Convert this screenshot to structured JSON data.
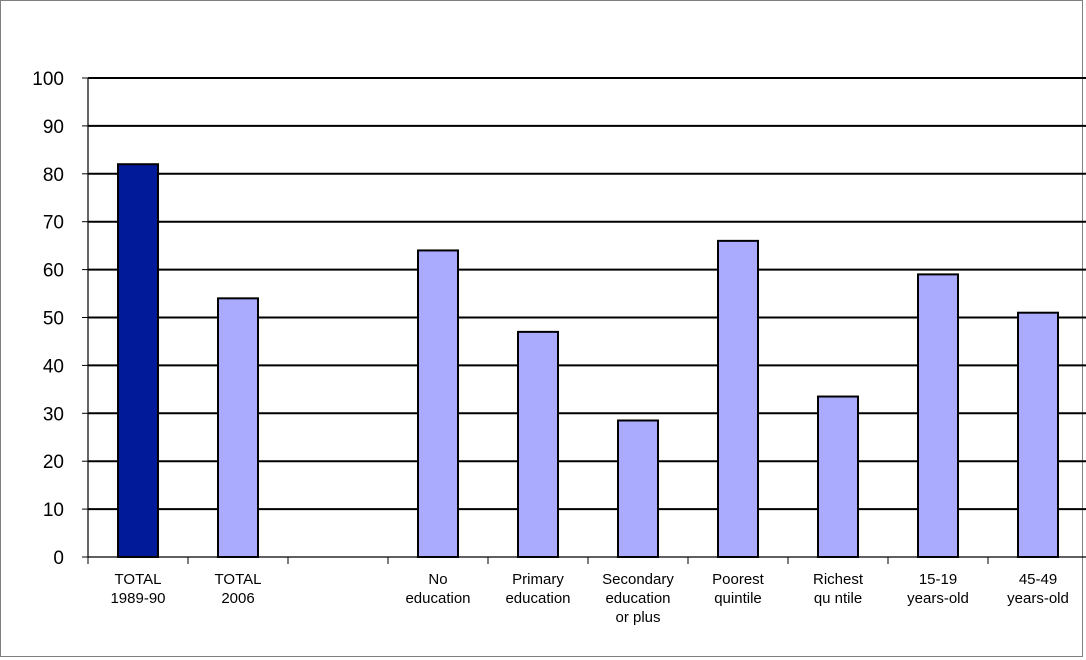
{
  "chart_data": {
    "type": "bar",
    "categories": [
      [
        "TOTAL",
        "1989-90"
      ],
      [
        "TOTAL",
        "2006"
      ],
      [
        ""
      ],
      [
        "No",
        "education"
      ],
      [
        "Primary",
        "education"
      ],
      [
        "Secondary",
        "education",
        "or plus"
      ],
      [
        "Poorest",
        "quintile"
      ],
      [
        "Richest",
        "qu ntile"
      ],
      [
        "15-19",
        "years-old"
      ],
      [
        "45-49",
        "years-old"
      ]
    ],
    "values": [
      82,
      54,
      null,
      64,
      47,
      28.5,
      66,
      33.5,
      59,
      51
    ],
    "colors": [
      "#001a99",
      "#aaaaff",
      "#aaaaff",
      "#aaaaff",
      "#aaaaff",
      "#aaaaff",
      "#aaaaff",
      "#aaaaff",
      "#aaaaff",
      "#aaaaff"
    ],
    "ylim": [
      0,
      100
    ],
    "yticks": [
      0,
      10,
      20,
      30,
      40,
      50,
      60,
      70,
      80,
      90,
      100
    ],
    "grid": true,
    "legend": "none",
    "title": "",
    "xlabel": "",
    "ylabel": ""
  }
}
